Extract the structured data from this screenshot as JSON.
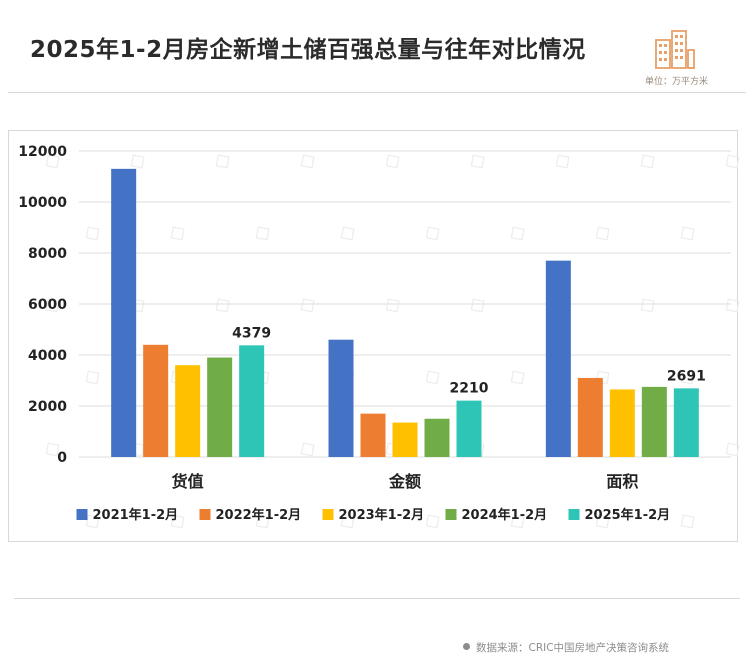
{
  "header": {
    "title": "2025年1-2月房企新增土储百强总量与往年对比情况",
    "unit": "单位：万平方米"
  },
  "footer": {
    "source": "数据来源：CRIC中国房地产决策咨询系统"
  },
  "colors": {
    "series": [
      "#4472C4",
      "#ED7D31",
      "#FFC000",
      "#70AD47",
      "#2EC4B6"
    ],
    "logo": "#E8A06A"
  },
  "logo_icon": "city-buildings-icon",
  "chart_data": {
    "type": "bar",
    "categories": [
      "货值",
      "金额",
      "面积"
    ],
    "series": [
      {
        "name": "2021年1-2月",
        "values": [
          11300,
          4600,
          7700
        ]
      },
      {
        "name": "2022年1-2月",
        "values": [
          4400,
          1700,
          3100
        ]
      },
      {
        "name": "2023年1-2月",
        "values": [
          3600,
          1350,
          2650
        ]
      },
      {
        "name": "2024年1-2月",
        "values": [
          3900,
          1500,
          2750
        ]
      },
      {
        "name": "2025年1-2月",
        "values": [
          4379,
          2210,
          2691
        ]
      }
    ],
    "data_labels": [
      {
        "series": 4,
        "category": 0,
        "text": "4379"
      },
      {
        "series": 4,
        "category": 1,
        "text": "2210"
      },
      {
        "series": 4,
        "category": 2,
        "text": "2691"
      }
    ],
    "yticks": [
      0,
      2000,
      4000,
      6000,
      8000,
      10000,
      12000
    ],
    "ylim": [
      0,
      12000
    ],
    "grid": true,
    "legend": "bottom"
  }
}
